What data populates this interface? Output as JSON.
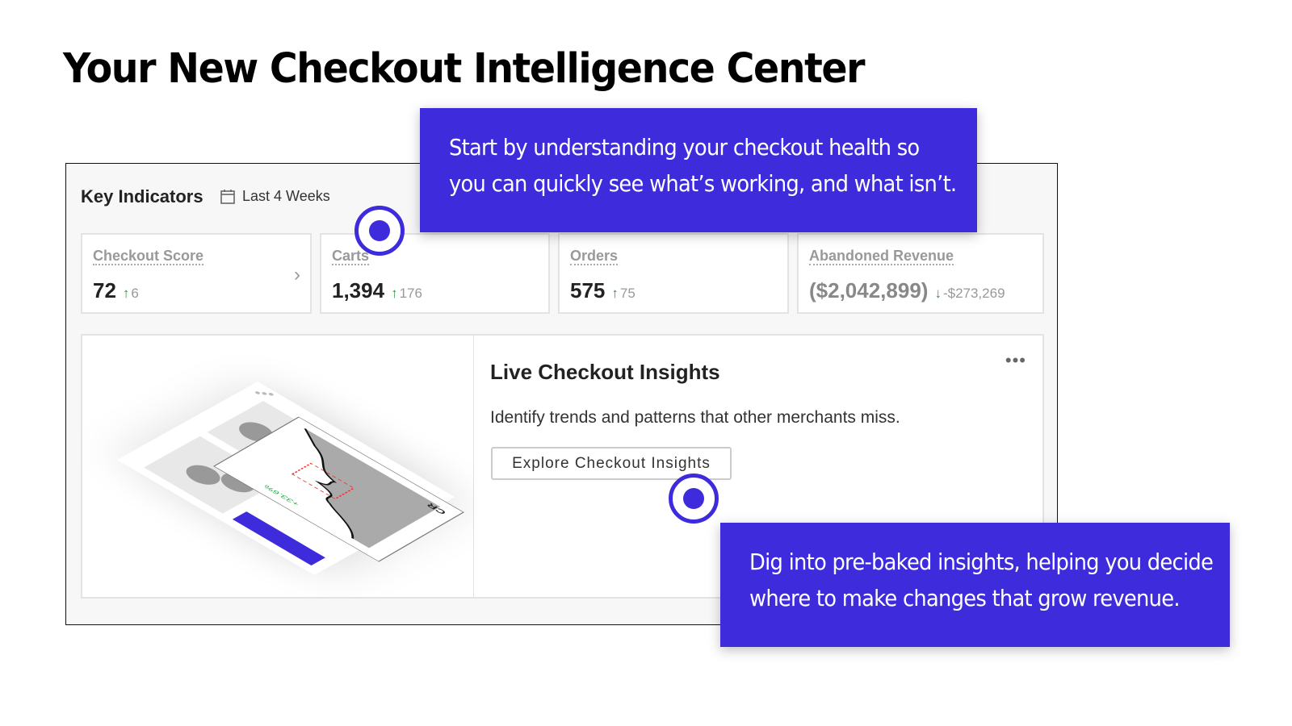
{
  "title": "Your New Checkout Intelligence Center",
  "panel": {
    "heading": "Key Indicators",
    "date_range": "Last 4 Weeks",
    "cards": [
      {
        "label": "Checkout Score",
        "value": "72",
        "delta": "6",
        "direction": "up"
      },
      {
        "label": "Carts",
        "value": "1,394",
        "delta": "176",
        "direction": "up"
      },
      {
        "label": "Orders",
        "value": "575",
        "delta": "75",
        "direction": "up"
      },
      {
        "label": "Abandoned Revenue",
        "value": "($2,042,899)",
        "delta": "-$273,269",
        "direction": "down"
      }
    ],
    "insights": {
      "title": "Live Checkout Insights",
      "description": "Identify trends and patterns that other merchants miss.",
      "button": "Explore Checkout Insights",
      "illustration": {
        "metric": "CR",
        "change": "+33.6%"
      }
    }
  },
  "tooltips": [
    {
      "lines": [
        "Start by understanding your checkout health so",
        "you can quickly see what’s working, and what isn’t."
      ]
    },
    {
      "lines": [
        "Dig into pre-baked insights, helping you decide",
        "where to make changes that grow revenue."
      ]
    }
  ],
  "colors": {
    "accent": "#3d2bdc",
    "positive": "#2a9a3a",
    "alert": "#e53935"
  }
}
